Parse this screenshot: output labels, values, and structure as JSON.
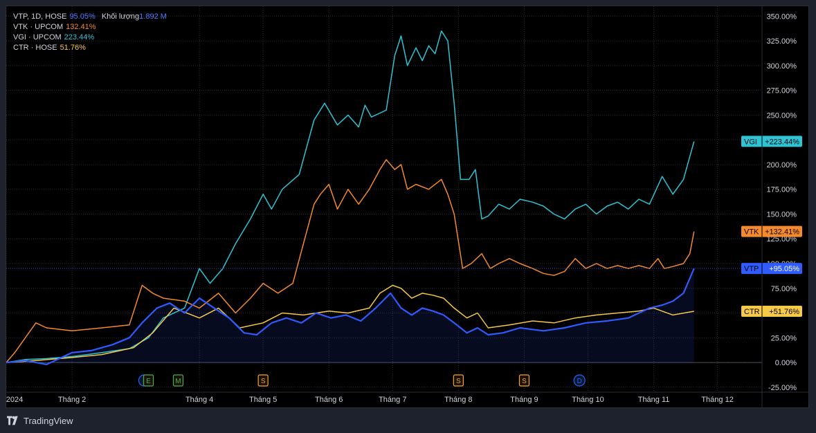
{
  "legend": [
    {
      "symbol": "VTP, 1D, HOSE",
      "value": "95.05%",
      "extra_label": "Khối lượng",
      "extra_value": "1.892 M",
      "color": "#4f7cff"
    },
    {
      "symbol": "VTK · UPCOM",
      "value": "132.41%",
      "color": "#f58a2c"
    },
    {
      "symbol": "VGI · UPCOM",
      "value": "223.44%",
      "color": "#2ec4d6"
    },
    {
      "symbol": "CTR · HOSE",
      "value": "51.76%",
      "color": "#f7c948"
    }
  ],
  "footer": {
    "brand": "TradingView"
  },
  "colors": {
    "background": "#000000",
    "frame": "#1e222d",
    "grid": "#2a2e39",
    "text": "#d1d4dc",
    "VTP": "#2f5bff",
    "VTK": "#f58a2c",
    "VGI": "#2ec4d6",
    "CTR": "#f7c948"
  },
  "chart_data": {
    "type": "line",
    "y_unit": "%",
    "ylim": [
      -30,
      360
    ],
    "xlim": [
      "2024-01-01",
      "2024-12-22"
    ],
    "grid": true,
    "y_ticks": [
      {
        "value": 350,
        "label": "350.00%"
      },
      {
        "value": 325,
        "label": "325.00%"
      },
      {
        "value": 300,
        "label": "300.00%"
      },
      {
        "value": 275,
        "label": "275.00%"
      },
      {
        "value": 250,
        "label": "250.00%"
      },
      {
        "value": 225,
        "label": "225.00%"
      },
      {
        "value": 200,
        "label": "200.00%"
      },
      {
        "value": 175,
        "label": "175.00%"
      },
      {
        "value": 150,
        "label": "150.00%"
      },
      {
        "value": 125,
        "label": "125.00%"
      },
      {
        "value": 100,
        "label": "100.00%"
      },
      {
        "value": 75,
        "label": "75.00%"
      },
      {
        "value": 50,
        "label": "50.00%"
      },
      {
        "value": 25,
        "label": "25.00%"
      },
      {
        "value": 0,
        "label": "0.00%"
      },
      {
        "value": -25,
        "label": "-25.00%"
      }
    ],
    "x_ticks": [
      {
        "date": "2024-01-01",
        "label": "2024"
      },
      {
        "date": "2024-02-01",
        "label": "Tháng 2"
      },
      {
        "date": "2024-04-01",
        "label": "Tháng 4"
      },
      {
        "date": "2024-05-01",
        "label": "Tháng 5"
      },
      {
        "date": "2024-06-01",
        "label": "Tháng 6"
      },
      {
        "date": "2024-07-01",
        "label": "Tháng 7"
      },
      {
        "date": "2024-08-01",
        "label": "Tháng 8"
      },
      {
        "date": "2024-09-01",
        "label": "Tháng 9"
      },
      {
        "date": "2024-10-01",
        "label": "Tháng 10"
      },
      {
        "date": "2024-11-01",
        "label": "Tháng 11"
      },
      {
        "date": "2024-12-01",
        "label": "Tháng 12"
      }
    ],
    "events": [
      {
        "date": "2024-03-06",
        "label": "",
        "color": "#2962ff",
        "shape": "circle"
      },
      {
        "date": "2024-03-08",
        "label": "E",
        "color": "#4caf50",
        "shape": "square"
      },
      {
        "date": "2024-03-22",
        "label": "M",
        "color": "#4caf50",
        "shape": "square"
      },
      {
        "date": "2024-05-01",
        "label": "S",
        "color": "#f7a531",
        "shape": "square"
      },
      {
        "date": "2024-08-01",
        "label": "S",
        "color": "#f7a531",
        "shape": "square"
      },
      {
        "date": "2024-09-01",
        "label": "S",
        "color": "#f7a531",
        "shape": "square"
      },
      {
        "date": "2024-09-27",
        "label": "D",
        "color": "#2962ff",
        "shape": "circle"
      }
    ],
    "series": [
      {
        "name": "VGI",
        "color": "#2ec4d6",
        "last_label": "+223.44%",
        "points": [
          [
            "2024-01-01",
            0
          ],
          [
            "2024-01-10",
            3
          ],
          [
            "2024-01-20",
            4
          ],
          [
            "2024-02-01",
            6
          ],
          [
            "2024-02-15",
            10
          ],
          [
            "2024-02-28",
            14
          ],
          [
            "2024-03-08",
            25
          ],
          [
            "2024-03-15",
            45
          ],
          [
            "2024-03-25",
            55
          ],
          [
            "2024-04-01",
            95
          ],
          [
            "2024-04-06",
            80
          ],
          [
            "2024-04-12",
            95
          ],
          [
            "2024-04-18",
            120
          ],
          [
            "2024-04-25",
            145
          ],
          [
            "2024-05-01",
            170
          ],
          [
            "2024-05-05",
            155
          ],
          [
            "2024-05-10",
            175
          ],
          [
            "2024-05-18",
            190
          ],
          [
            "2024-05-25",
            245
          ],
          [
            "2024-05-30",
            262
          ],
          [
            "2024-06-05",
            240
          ],
          [
            "2024-06-10",
            250
          ],
          [
            "2024-06-15",
            238
          ],
          [
            "2024-06-18",
            260
          ],
          [
            "2024-06-21",
            248
          ],
          [
            "2024-06-25",
            252
          ],
          [
            "2024-06-28",
            255
          ],
          [
            "2024-07-02",
            310
          ],
          [
            "2024-07-05",
            330
          ],
          [
            "2024-07-08",
            300
          ],
          [
            "2024-07-12",
            318
          ],
          [
            "2024-07-15",
            305
          ],
          [
            "2024-07-18",
            320
          ],
          [
            "2024-07-21",
            312
          ],
          [
            "2024-07-24",
            335
          ],
          [
            "2024-07-27",
            325
          ],
          [
            "2024-07-30",
            262
          ],
          [
            "2024-08-02",
            185
          ],
          [
            "2024-08-06",
            185
          ],
          [
            "2024-08-09",
            195
          ],
          [
            "2024-08-12",
            145
          ],
          [
            "2024-08-15",
            148
          ],
          [
            "2024-08-20",
            160
          ],
          [
            "2024-08-25",
            155
          ],
          [
            "2024-08-30",
            165
          ],
          [
            "2024-09-05",
            162
          ],
          [
            "2024-09-10",
            158
          ],
          [
            "2024-09-15",
            150
          ],
          [
            "2024-09-20",
            145
          ],
          [
            "2024-09-25",
            155
          ],
          [
            "2024-09-30",
            160
          ],
          [
            "2024-10-05",
            150
          ],
          [
            "2024-10-10",
            158
          ],
          [
            "2024-10-15",
            162
          ],
          [
            "2024-10-20",
            155
          ],
          [
            "2024-10-25",
            165
          ],
          [
            "2024-10-30",
            160
          ],
          [
            "2024-11-05",
            188
          ],
          [
            "2024-11-10",
            170
          ],
          [
            "2024-11-15",
            185
          ],
          [
            "2024-11-20",
            223.44
          ]
        ]
      },
      {
        "name": "VTK",
        "color": "#f58a2c",
        "last_label": "+132.41%",
        "points": [
          [
            "2024-01-01",
            0
          ],
          [
            "2024-01-05",
            10
          ],
          [
            "2024-01-10",
            25
          ],
          [
            "2024-01-15",
            40
          ],
          [
            "2024-01-20",
            35
          ],
          [
            "2024-02-01",
            32
          ],
          [
            "2024-02-15",
            35
          ],
          [
            "2024-02-28",
            38
          ],
          [
            "2024-03-05",
            78
          ],
          [
            "2024-03-10",
            70
          ],
          [
            "2024-03-15",
            65
          ],
          [
            "2024-03-25",
            62
          ],
          [
            "2024-04-01",
            55
          ],
          [
            "2024-04-10",
            70
          ],
          [
            "2024-04-18",
            50
          ],
          [
            "2024-04-25",
            65
          ],
          [
            "2024-05-01",
            80
          ],
          [
            "2024-05-08",
            70
          ],
          [
            "2024-05-15",
            80
          ],
          [
            "2024-05-20",
            120
          ],
          [
            "2024-05-25",
            160
          ],
          [
            "2024-05-28",
            170
          ],
          [
            "2024-06-01",
            180
          ],
          [
            "2024-06-05",
            155
          ],
          [
            "2024-06-10",
            175
          ],
          [
            "2024-06-15",
            160
          ],
          [
            "2024-06-20",
            175
          ],
          [
            "2024-06-25",
            195
          ],
          [
            "2024-06-28",
            205
          ],
          [
            "2024-07-02",
            195
          ],
          [
            "2024-07-05",
            200
          ],
          [
            "2024-07-08",
            175
          ],
          [
            "2024-07-12",
            180
          ],
          [
            "2024-07-18",
            175
          ],
          [
            "2024-07-24",
            185
          ],
          [
            "2024-07-27",
            170
          ],
          [
            "2024-07-30",
            150
          ],
          [
            "2024-08-03",
            95
          ],
          [
            "2024-08-07",
            100
          ],
          [
            "2024-08-12",
            110
          ],
          [
            "2024-08-16",
            95
          ],
          [
            "2024-08-20",
            100
          ],
          [
            "2024-08-25",
            105
          ],
          [
            "2024-08-30",
            100
          ],
          [
            "2024-09-05",
            95
          ],
          [
            "2024-09-10",
            90
          ],
          [
            "2024-09-15",
            88
          ],
          [
            "2024-09-20",
            92
          ],
          [
            "2024-09-25",
            105
          ],
          [
            "2024-09-30",
            95
          ],
          [
            "2024-10-05",
            100
          ],
          [
            "2024-10-10",
            95
          ],
          [
            "2024-10-15",
            98
          ],
          [
            "2024-10-20",
            95
          ],
          [
            "2024-10-25",
            98
          ],
          [
            "2024-10-30",
            95
          ],
          [
            "2024-11-03",
            105
          ],
          [
            "2024-11-06",
            95
          ],
          [
            "2024-11-10",
            97
          ],
          [
            "2024-11-15",
            100
          ],
          [
            "2024-11-18",
            110
          ],
          [
            "2024-11-20",
            132.41
          ]
        ]
      },
      {
        "name": "CTR",
        "color": "#f7c948",
        "last_label": "+51.76%",
        "points": [
          [
            "2024-01-01",
            0
          ],
          [
            "2024-01-15",
            2
          ],
          [
            "2024-02-01",
            5
          ],
          [
            "2024-02-15",
            8
          ],
          [
            "2024-03-01",
            15
          ],
          [
            "2024-03-10",
            30
          ],
          [
            "2024-03-20",
            55
          ],
          [
            "2024-04-01",
            45
          ],
          [
            "2024-04-10",
            55
          ],
          [
            "2024-04-20",
            35
          ],
          [
            "2024-05-01",
            40
          ],
          [
            "2024-05-10",
            50
          ],
          [
            "2024-05-20",
            48
          ],
          [
            "2024-06-01",
            52
          ],
          [
            "2024-06-10",
            50
          ],
          [
            "2024-06-20",
            55
          ],
          [
            "2024-06-25",
            70
          ],
          [
            "2024-07-01",
            78
          ],
          [
            "2024-07-05",
            75
          ],
          [
            "2024-07-10",
            65
          ],
          [
            "2024-07-15",
            70
          ],
          [
            "2024-07-20",
            68
          ],
          [
            "2024-07-25",
            65
          ],
          [
            "2024-07-30",
            55
          ],
          [
            "2024-08-05",
            45
          ],
          [
            "2024-08-10",
            50
          ],
          [
            "2024-08-15",
            35
          ],
          [
            "2024-08-25",
            38
          ],
          [
            "2024-09-05",
            42
          ],
          [
            "2024-09-15",
            40
          ],
          [
            "2024-09-25",
            45
          ],
          [
            "2024-10-05",
            48
          ],
          [
            "2024-10-15",
            50
          ],
          [
            "2024-10-25",
            52
          ],
          [
            "2024-11-01",
            55
          ],
          [
            "2024-11-10",
            48
          ],
          [
            "2024-11-20",
            51.76
          ]
        ]
      },
      {
        "name": "VTP",
        "color": "#2f5bff",
        "last_label": "+95.05%",
        "points": [
          [
            "2024-01-01",
            0
          ],
          [
            "2024-01-10",
            2
          ],
          [
            "2024-01-20",
            -2
          ],
          [
            "2024-02-01",
            10
          ],
          [
            "2024-02-10",
            12
          ],
          [
            "2024-02-20",
            18
          ],
          [
            "2024-02-28",
            25
          ],
          [
            "2024-03-05",
            40
          ],
          [
            "2024-03-12",
            55
          ],
          [
            "2024-03-18",
            60
          ],
          [
            "2024-03-25",
            50
          ],
          [
            "2024-04-01",
            65
          ],
          [
            "2024-04-08",
            55
          ],
          [
            "2024-04-15",
            45
          ],
          [
            "2024-04-22",
            30
          ],
          [
            "2024-04-28",
            28
          ],
          [
            "2024-05-05",
            40
          ],
          [
            "2024-05-12",
            45
          ],
          [
            "2024-05-19",
            40
          ],
          [
            "2024-05-26",
            50
          ],
          [
            "2024-06-02",
            45
          ],
          [
            "2024-06-09",
            48
          ],
          [
            "2024-06-16",
            42
          ],
          [
            "2024-06-23",
            55
          ],
          [
            "2024-06-30",
            70
          ],
          [
            "2024-07-05",
            55
          ],
          [
            "2024-07-10",
            48
          ],
          [
            "2024-07-15",
            55
          ],
          [
            "2024-07-20",
            52
          ],
          [
            "2024-07-25",
            48
          ],
          [
            "2024-07-30",
            40
          ],
          [
            "2024-08-05",
            30
          ],
          [
            "2024-08-10",
            35
          ],
          [
            "2024-08-15",
            28
          ],
          [
            "2024-08-22",
            30
          ],
          [
            "2024-08-30",
            35
          ],
          [
            "2024-09-10",
            32
          ],
          [
            "2024-09-20",
            35
          ],
          [
            "2024-09-30",
            40
          ],
          [
            "2024-10-10",
            42
          ],
          [
            "2024-10-20",
            45
          ],
          [
            "2024-10-30",
            55
          ],
          [
            "2024-11-05",
            58
          ],
          [
            "2024-11-10",
            62
          ],
          [
            "2024-11-15",
            70
          ],
          [
            "2024-11-20",
            95.05
          ]
        ]
      }
    ]
  }
}
